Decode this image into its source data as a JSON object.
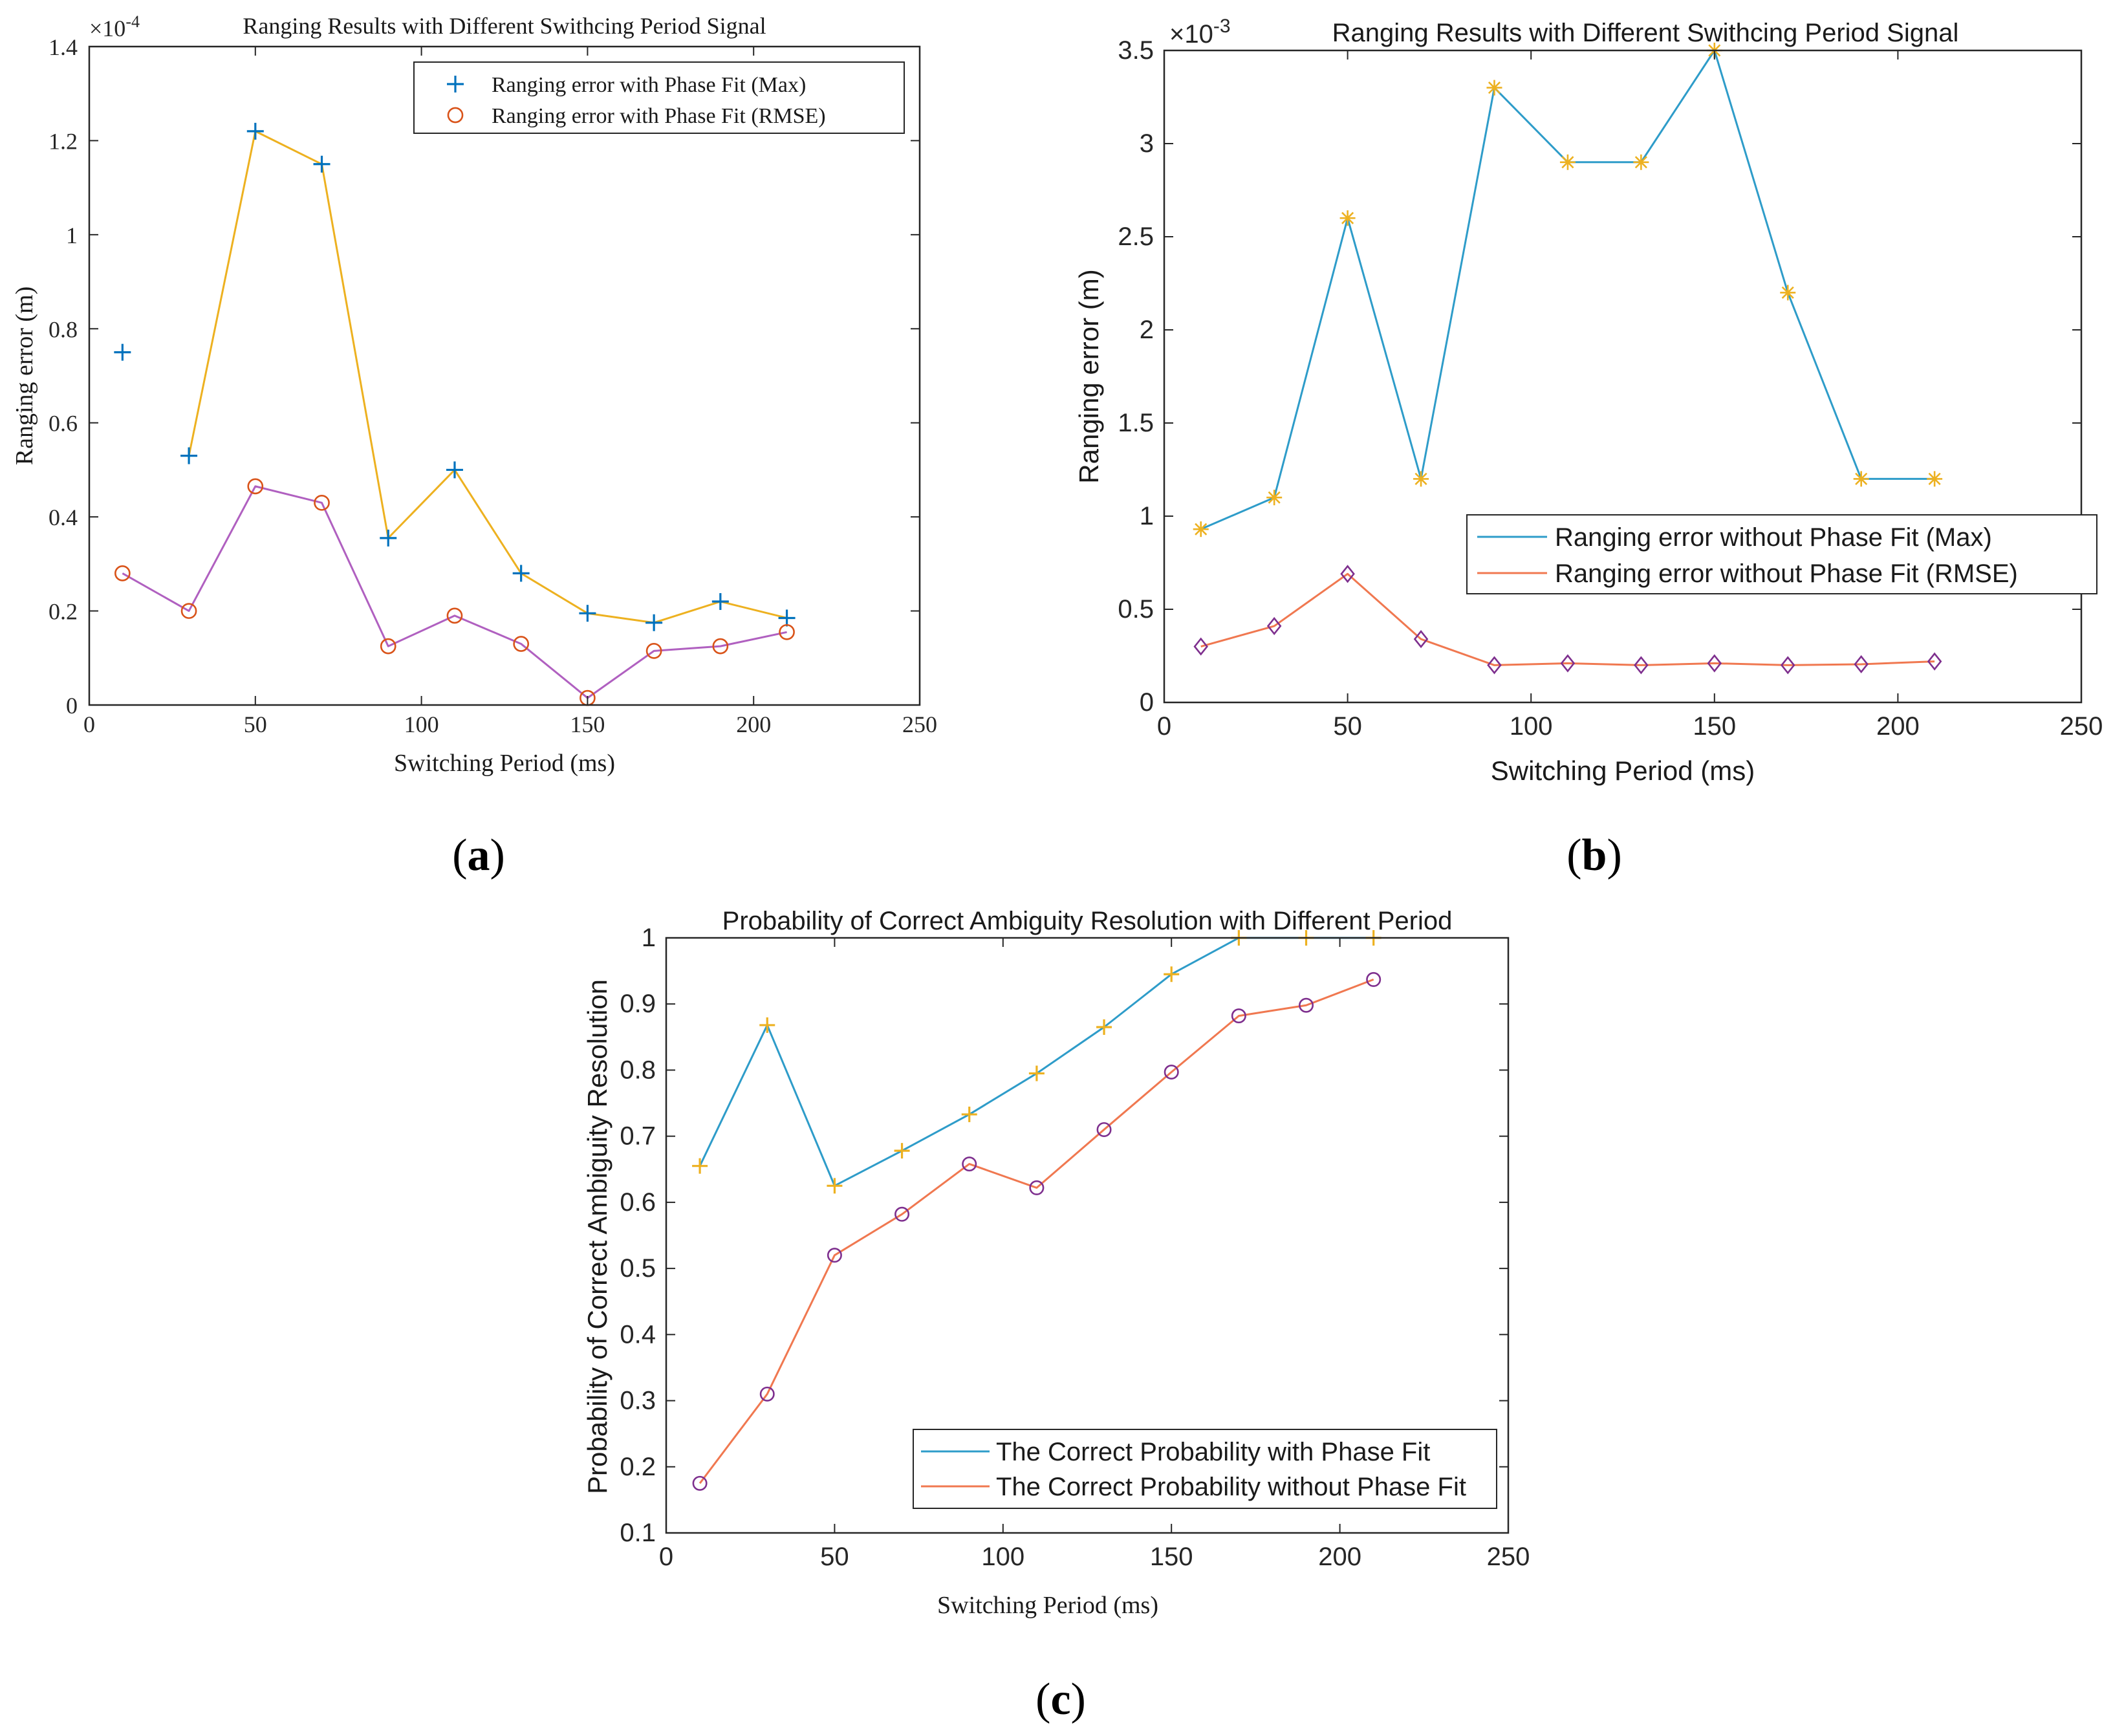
{
  "colors": {
    "blue": "#0072BD",
    "orange": "#D95319",
    "yellow": "#EDB120",
    "purple": "#7E2F8E",
    "line_blue": "#2E9CC9",
    "line_orange": "#F07850",
    "line_purple": "#B060C0"
  },
  "chart_data": [
    {
      "id": "a",
      "type": "line",
      "panel_label_open": "(",
      "panel_label": "a",
      "panel_label_close": ")",
      "title": "Ranging Results with Different Swithcing Period Signal",
      "xlabel": "Switching Period (ms)",
      "ylabel": "Ranging error (m)",
      "exponent_label": "×10",
      "exponent_power": "-4",
      "xlim": [
        0,
        250
      ],
      "ylim": [
        0,
        1.4
      ],
      "xticks": [
        0,
        50,
        100,
        150,
        200,
        250
      ],
      "yticks": [
        0,
        0.2,
        0.4,
        0.6,
        0.8,
        1,
        1.2,
        1.4
      ],
      "x": [
        10,
        30,
        50,
        70,
        90,
        110,
        130,
        150,
        170,
        190,
        210
      ],
      "series": [
        {
          "name": "Ranging error with Phase Fit (Max)",
          "values": [
            0.75,
            0.53,
            1.22,
            1.15,
            0.355,
            0.5,
            0.28,
            0.195,
            0.175,
            0.22,
            0.185
          ],
          "line_color": "#EDB120",
          "marker": "plus",
          "marker_color": "#0072BD",
          "line_from": 1
        },
        {
          "name": "Ranging error with Phase Fit (RMSE)",
          "values": [
            0.28,
            0.2,
            0.465,
            0.43,
            0.125,
            0.19,
            0.13,
            0.015,
            0.115,
            0.125,
            0.155
          ],
          "line_color": "#B060C0",
          "marker": "circle",
          "marker_color": "#D95319",
          "line_from": 0
        }
      ],
      "legend_entries": [
        "Ranging error with Phase Fit (Max)",
        "Ranging error with Phase Fit (RMSE)"
      ],
      "legend_position": "top-right"
    },
    {
      "id": "b",
      "type": "line",
      "panel_label_open": "(",
      "panel_label": "b",
      "panel_label_close": ")",
      "title": "Ranging Results with Different Swithcing Period Signal",
      "xlabel": "Switching Period (ms)",
      "ylabel": "Ranging error (m)",
      "exponent_label": "×10",
      "exponent_power": "-3",
      "xlim": [
        0,
        250
      ],
      "ylim": [
        0,
        3.5
      ],
      "xticks": [
        0,
        50,
        100,
        150,
        200,
        250
      ],
      "yticks": [
        0,
        0.5,
        1,
        1.5,
        2,
        2.5,
        3,
        3.5
      ],
      "x": [
        10,
        30,
        50,
        70,
        90,
        110,
        130,
        150,
        170,
        190,
        210
      ],
      "series": [
        {
          "name": "Ranging error without Phase Fit (Max)",
          "values": [
            0.93,
            1.1,
            2.6,
            1.2,
            3.3,
            2.9,
            2.9,
            3.5,
            2.2,
            1.2,
            1.2
          ],
          "line_color": "#2E9CC9",
          "marker": "asterisk",
          "marker_color": "#EDB120",
          "line_from": 0
        },
        {
          "name": "Ranging error without Phase Fit (RMSE)",
          "values": [
            0.3,
            0.41,
            0.69,
            0.34,
            0.2,
            0.21,
            0.2,
            0.21,
            0.2,
            0.205,
            0.22
          ],
          "line_color": "#F07850",
          "marker": "diamond",
          "marker_color": "#7E2F8E",
          "line_from": 0
        }
      ],
      "legend_entries": [
        "Ranging error without Phase Fit (Max)",
        "Ranging error without Phase Fit (RMSE)"
      ],
      "legend_position": "lower-right"
    },
    {
      "id": "c",
      "type": "line",
      "panel_label_open": "(",
      "panel_label": "c",
      "panel_label_close": ")",
      "title": "Probability of Correct Ambiguity Resolution with Different Period",
      "xlabel": "Switching Period (ms)",
      "ylabel": "Probability of Correct Ambiguity Resolution",
      "xlim": [
        0,
        250
      ],
      "ylim": [
        0.1,
        1
      ],
      "xticks": [
        0,
        50,
        100,
        150,
        200,
        250
      ],
      "yticks": [
        0.1,
        0.2,
        0.3,
        0.4,
        0.5,
        0.6,
        0.7,
        0.8,
        0.9,
        1
      ],
      "x": [
        10,
        30,
        50,
        70,
        90,
        110,
        130,
        150,
        170,
        190,
        210
      ],
      "series": [
        {
          "name": "The Correct Probability with Phase Fit",
          "values": [
            0.655,
            0.868,
            0.625,
            0.678,
            0.733,
            0.795,
            0.865,
            0.945,
            1.0,
            1.0,
            1.0
          ],
          "line_color": "#2E9CC9",
          "marker": "plus",
          "marker_color": "#EDB120",
          "line_from": 0
        },
        {
          "name": "The Correct Probability without Phase Fit",
          "values": [
            0.175,
            0.31,
            0.52,
            0.582,
            0.658,
            0.622,
            0.71,
            0.797,
            0.882,
            0.898,
            0.937
          ],
          "line_color": "#F07850",
          "marker": "circle",
          "marker_color": "#7E2F8E",
          "line_from": 0
        }
      ],
      "legend_entries": [
        "The Correct Probability with Phase Fit",
        "The Correct Probability without Phase Fit"
      ],
      "legend_position": "lower-left"
    }
  ]
}
